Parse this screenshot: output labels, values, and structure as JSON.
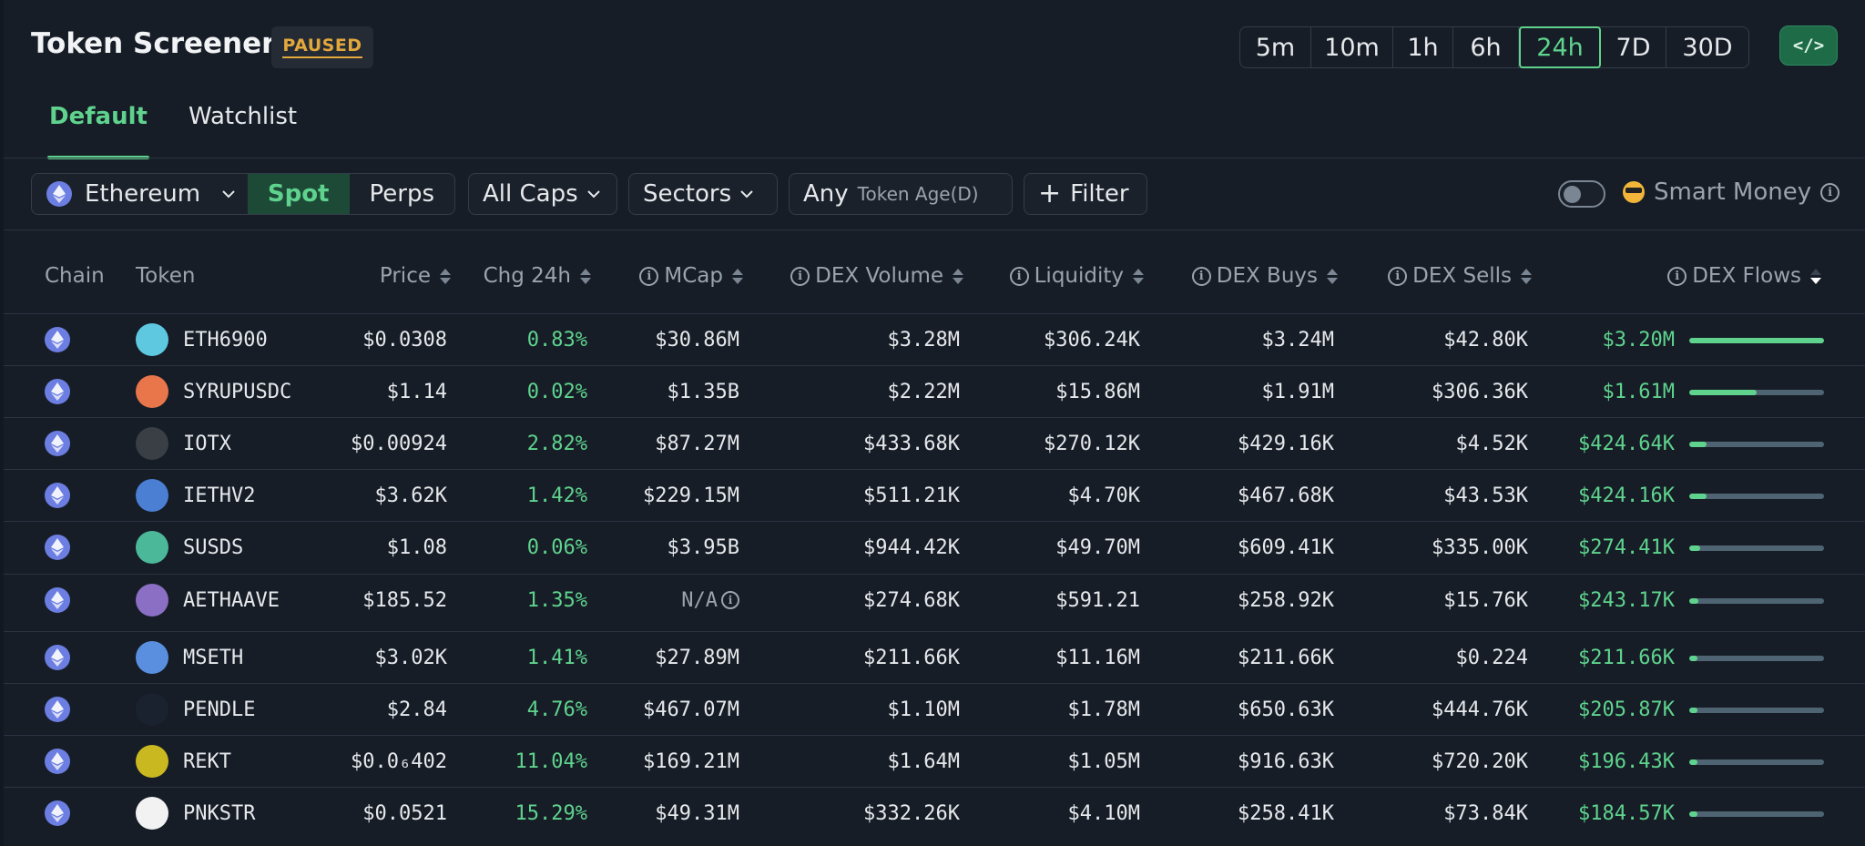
{
  "header": {
    "title": "Token Screener",
    "status_badge": "PAUSED"
  },
  "timeframes": [
    {
      "label": "5m",
      "active": false
    },
    {
      "label": "10m",
      "active": false
    },
    {
      "label": "1h",
      "active": false
    },
    {
      "label": "6h",
      "active": false
    },
    {
      "label": "24h",
      "active": true
    },
    {
      "label": "7D",
      "active": false
    },
    {
      "label": "30D",
      "active": false
    }
  ],
  "embed_button": {
    "icon": "code-icon"
  },
  "tabs": [
    {
      "label": "Default",
      "active": true
    },
    {
      "label": "Watchlist",
      "active": false
    }
  ],
  "filters": {
    "chain": "Ethereum",
    "market_type": {
      "options": [
        "Spot",
        "Perps"
      ],
      "selected": "Spot"
    },
    "caps": "All Caps",
    "sectors": "Sectors",
    "age_value": "Any",
    "age_label": "Token Age(D)",
    "filter_button": "Filter",
    "smart_money_label": "Smart Money",
    "smart_money_enabled": false
  },
  "colors": {
    "accent": "#5fd38d",
    "positive": "#5fd38d",
    "warning": "#e3a73b",
    "background": "#161d27"
  },
  "table": {
    "columns": [
      "Chain",
      "Token",
      "Price",
      "Chg 24h",
      "MCap",
      "DEX Volume",
      "Liquidity",
      "DEX Buys",
      "DEX Sells",
      "DEX Flows"
    ],
    "sorted_column": "DEX Flows",
    "sort_direction": "desc",
    "rows": [
      {
        "token": "ETH6900",
        "price": "$0.0308",
        "chg": "0.83%",
        "mcap": "$30.86M",
        "volume": "$3.28M",
        "liquidity": "$306.24K",
        "buys": "$3.24M",
        "sells": "$42.80K",
        "flows": "$3.20M",
        "flow_ratio": 1.0,
        "icon_color": "#5ec8e0"
      },
      {
        "token": "SYRUPUSDC",
        "price": "$1.14",
        "chg": "0.02%",
        "mcap": "$1.35B",
        "volume": "$2.22M",
        "liquidity": "$15.86M",
        "buys": "$1.91M",
        "sells": "$306.36K",
        "flows": "$1.61M",
        "flow_ratio": 0.5,
        "icon_color": "#e8764a"
      },
      {
        "token": "IOTX",
        "price": "$0.00924",
        "chg": "2.82%",
        "mcap": "$87.27M",
        "volume": "$433.68K",
        "liquidity": "$270.12K",
        "buys": "$429.16K",
        "sells": "$4.52K",
        "flows": "$424.64K",
        "flow_ratio": 0.13,
        "icon_color": "#3a3f46"
      },
      {
        "token": "IETHV2",
        "price": "$3.62K",
        "chg": "1.42%",
        "mcap": "$229.15M",
        "volume": "$511.21K",
        "liquidity": "$4.70K",
        "buys": "$467.68K",
        "sells": "$43.53K",
        "flows": "$424.16K",
        "flow_ratio": 0.13,
        "icon_color": "#4a7fd4"
      },
      {
        "token": "SUSDS",
        "price": "$1.08",
        "chg": "0.06%",
        "mcap": "$3.95B",
        "volume": "$944.42K",
        "liquidity": "$49.70M",
        "buys": "$609.41K",
        "sells": "$335.00K",
        "flows": "$274.41K",
        "flow_ratio": 0.08,
        "icon_color": "#4cb89a"
      },
      {
        "token": "AETHAAVE",
        "price": "$185.52",
        "chg": "1.35%",
        "mcap": "N/A",
        "volume": "$274.68K",
        "liquidity": "$591.21",
        "buys": "$258.92K",
        "sells": "$15.76K",
        "flows": "$243.17K",
        "flow_ratio": 0.07,
        "icon_color": "#8a6fc4"
      },
      {
        "token": "MSETH",
        "price": "$3.02K",
        "chg": "1.41%",
        "mcap": "$27.89M",
        "volume": "$211.66K",
        "liquidity": "$11.16M",
        "buys": "$211.66K",
        "sells": "$0.224",
        "flows": "$211.66K",
        "flow_ratio": 0.06,
        "icon_color": "#5a8fe0"
      },
      {
        "token": "PENDLE",
        "price": "$2.84",
        "chg": "4.76%",
        "mcap": "$467.07M",
        "volume": "$1.10M",
        "liquidity": "$1.78M",
        "buys": "$650.63K",
        "sells": "$444.76K",
        "flows": "$205.87K",
        "flow_ratio": 0.06,
        "icon_color": "#1a2230"
      },
      {
        "token": "REKT",
        "price": "$0.0₆402",
        "chg": "11.04%",
        "mcap": "$169.21M",
        "volume": "$1.64M",
        "liquidity": "$1.05M",
        "buys": "$916.63K",
        "sells": "$720.20K",
        "flows": "$196.43K",
        "flow_ratio": 0.06,
        "icon_color": "#c9b820"
      },
      {
        "token": "PNKSTR",
        "price": "$0.0521",
        "chg": "15.29%",
        "mcap": "$49.31M",
        "volume": "$332.26K",
        "liquidity": "$4.10M",
        "buys": "$258.41K",
        "sells": "$73.84K",
        "flows": "$184.57K",
        "flow_ratio": 0.05,
        "icon_color": "#f2f2f2"
      }
    ]
  }
}
